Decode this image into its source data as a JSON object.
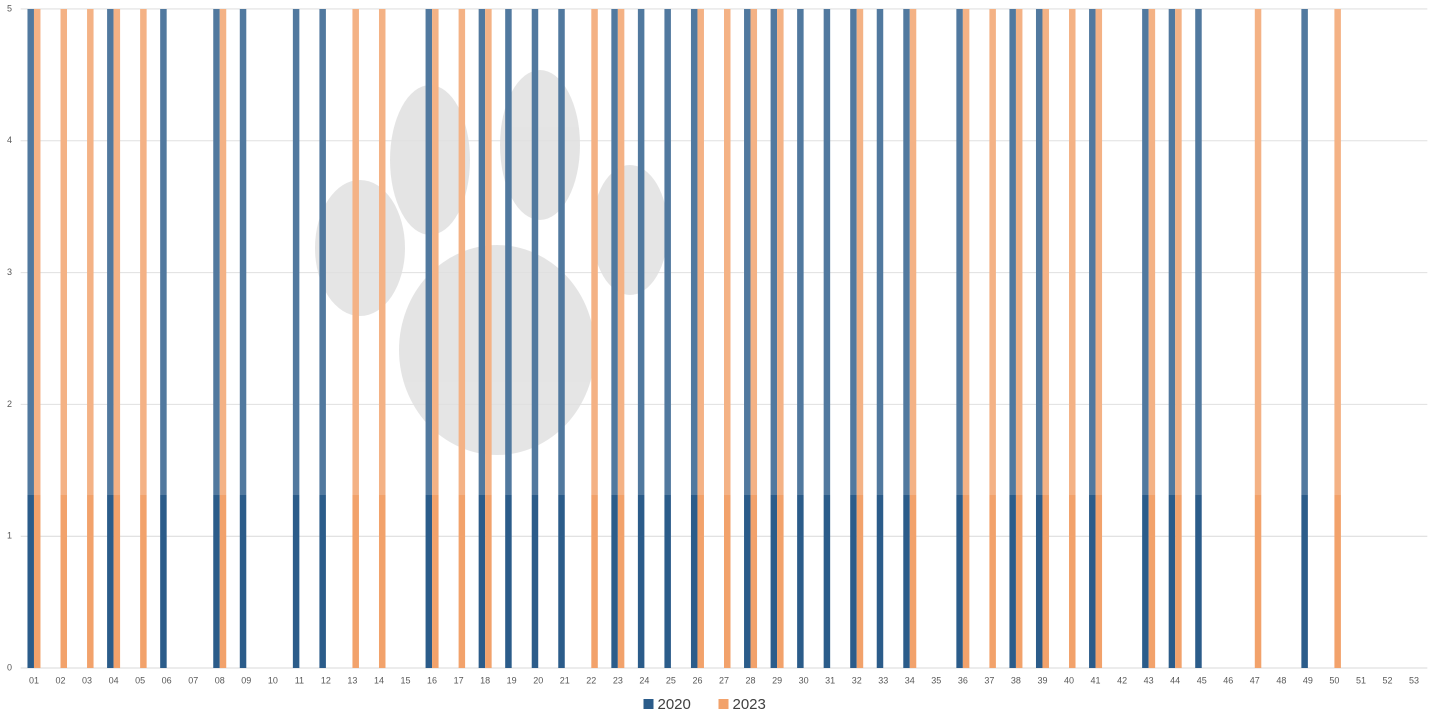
{
  "chart_data": {
    "type": "bar",
    "categories": [
      "01",
      "02",
      "03",
      "04",
      "05",
      "06",
      "07",
      "08",
      "09",
      "10",
      "11",
      "12",
      "13",
      "14",
      "15",
      "16",
      "17",
      "18",
      "19",
      "20",
      "21",
      "22",
      "23",
      "24",
      "25",
      "26",
      "27",
      "28",
      "29",
      "30",
      "31",
      "32",
      "33",
      "34",
      "35",
      "36",
      "37",
      "38",
      "39",
      "40",
      "41",
      "42",
      "43",
      "44",
      "45",
      "46",
      "47",
      "48",
      "49",
      "50",
      "51",
      "52",
      "53"
    ],
    "series": [
      {
        "name": "2020",
        "color": "#2b5c8a",
        "values": [
          5,
          0,
          0,
          5,
          0,
          5,
          0,
          5,
          5,
          0,
          5,
          5,
          0,
          0,
          0,
          5,
          0,
          5,
          5,
          5,
          5,
          0,
          5,
          5,
          5,
          5,
          0,
          5,
          5,
          5,
          5,
          5,
          5,
          5,
          0,
          5,
          0,
          5,
          5,
          0,
          5,
          0,
          5,
          5,
          5,
          0,
          0,
          0,
          5,
          0,
          0,
          0,
          0
        ]
      },
      {
        "name": "2023",
        "color": "#f2a26b",
        "values": [
          5,
          5,
          5,
          5,
          5,
          0,
          0,
          5,
          0,
          0,
          0,
          0,
          5,
          5,
          0,
          5,
          5,
          5,
          0,
          0,
          0,
          5,
          5,
          0,
          0,
          5,
          5,
          5,
          5,
          0,
          0,
          5,
          0,
          5,
          0,
          5,
          5,
          5,
          5,
          5,
          5,
          0,
          5,
          5,
          0,
          0,
          5,
          0,
          0,
          5,
          0,
          0,
          0
        ]
      }
    ],
    "ylim": [
      0,
      5
    ],
    "yticks": [
      0,
      1,
      2,
      3,
      4,
      5
    ],
    "grid": true,
    "legend": "bottom"
  }
}
